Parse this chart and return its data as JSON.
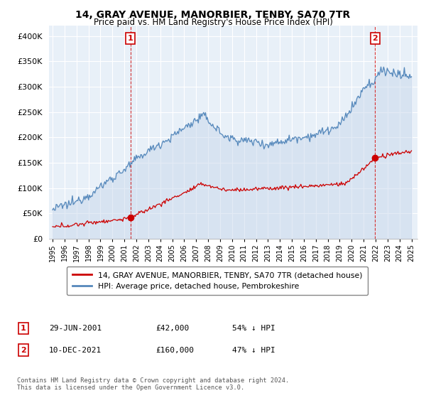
{
  "title": "14, GRAY AVENUE, MANORBIER, TENBY, SA70 7TR",
  "subtitle": "Price paid vs. HM Land Registry's House Price Index (HPI)",
  "legend_label_red": "14, GRAY AVENUE, MANORBIER, TENBY, SA70 7TR (detached house)",
  "legend_label_blue": "HPI: Average price, detached house, Pembrokeshire",
  "annotation1_label": "1",
  "annotation1_date": "29-JUN-2001",
  "annotation1_price": "£42,000",
  "annotation1_hpi": "54% ↓ HPI",
  "annotation2_label": "2",
  "annotation2_date": "10-DEC-2021",
  "annotation2_price": "£160,000",
  "annotation2_hpi": "47% ↓ HPI",
  "footer": "Contains HM Land Registry data © Crown copyright and database right 2024.\nThis data is licensed under the Open Government Licence v3.0.",
  "ylim": [
    0,
    420000
  ],
  "yticks": [
    0,
    50000,
    100000,
    150000,
    200000,
    250000,
    300000,
    350000,
    400000
  ],
  "sale1_year": 2001.5,
  "sale1_price": 42000,
  "sale2_year": 2021.95,
  "sale2_price": 160000,
  "background_color": "#ffffff",
  "plot_bg_color": "#e8f0f8",
  "grid_color": "#ffffff",
  "red_color": "#cc0000",
  "blue_color": "#5588bb",
  "blue_fill": "#c8d8ec"
}
